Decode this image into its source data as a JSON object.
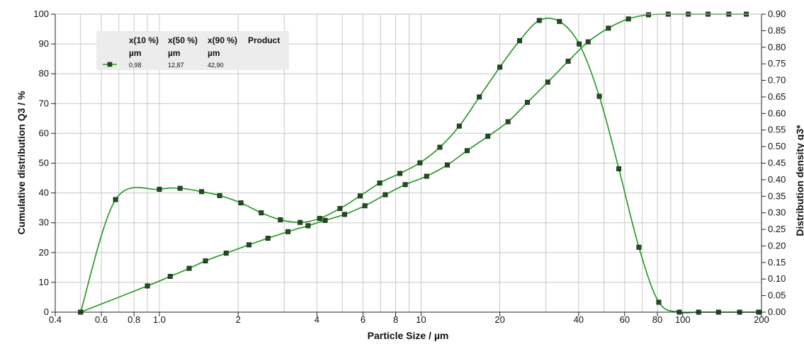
{
  "chart_data": {
    "type": "line",
    "xlabel": "Particle Size / µm",
    "ylabel": "Cumulative distribution Q3 / %",
    "y2label": "Distribution density q3*",
    "x_scale": "log",
    "xlim": [
      0.4,
      200
    ],
    "ylim": [
      0,
      100
    ],
    "y2lim": [
      0,
      0.9
    ],
    "grid": true,
    "x_ticks": [
      0.4,
      0.6,
      0.8,
      1.0,
      2,
      4,
      6,
      8,
      10,
      20,
      40,
      60,
      80,
      100,
      200
    ],
    "x_tick_labels": [
      "0.4",
      "0.6",
      "0.8",
      "1.0",
      "2",
      "4",
      "6",
      "8",
      "10",
      "20",
      "40",
      "60",
      "80",
      "100",
      "200"
    ],
    "y_ticks": [
      0,
      10,
      20,
      30,
      40,
      50,
      60,
      70,
      80,
      90,
      100
    ],
    "y_tick_labels": [
      "0",
      "10",
      "20",
      "30",
      "40",
      "50",
      "60",
      "70",
      "80",
      "90",
      "100"
    ],
    "y2_ticks": [
      0,
      0.05,
      0.1,
      0.15,
      0.2,
      0.25,
      0.3,
      0.35,
      0.4,
      0.45,
      0.5,
      0.55,
      0.6,
      0.65,
      0.7,
      0.75,
      0.8,
      0.85,
      0.9
    ],
    "y2_tick_labels": [
      "0.00",
      "0.05",
      "0.10",
      "0.15",
      "0.20",
      "0.25",
      "0.30",
      "0.35",
      "0.40",
      "0.45",
      "0.50",
      "0.55",
      "0.60",
      "0.65",
      "0.70",
      "0.75",
      "0.80",
      "0.85",
      "0.90"
    ],
    "series_color": "#2d9a2d",
    "marker_color": "#1f4d1f",
    "series": [
      {
        "axis": "left",
        "x": [
          0.5,
          0.9,
          1.1,
          1.3,
          1.5,
          1.8,
          2.2,
          2.6,
          3.1,
          3.7,
          4.3,
          5.1,
          6.1,
          7.3,
          8.7,
          10.5,
          12.6,
          15.0,
          18.0,
          21.5,
          25.5,
          30.5,
          36.5,
          43.5,
          52.0,
          62.0,
          74.0,
          88.0,
          105.0,
          125.0,
          150.0,
          175.0
        ],
        "y": [
          0,
          8.8,
          12,
          14.7,
          17.2,
          19.8,
          22.6,
          24.8,
          27,
          29,
          30.8,
          32.8,
          35.7,
          39.4,
          42.8,
          45.6,
          49.4,
          54.2,
          59,
          63.9,
          70.4,
          77.2,
          84.2,
          90.7,
          95.3,
          98.4,
          99.8,
          100,
          100,
          100,
          100,
          100
        ]
      },
      {
        "axis": "right",
        "x": [
          0.5,
          0.68,
          1.0,
          1.2,
          1.45,
          1.7,
          2.05,
          2.45,
          2.9,
          3.45,
          4.1,
          4.9,
          5.85,
          6.95,
          8.3,
          9.9,
          11.8,
          14.0,
          16.7,
          20.0,
          23.8,
          28.3,
          33.8,
          40.2,
          48.0,
          57.0,
          68.0,
          81.0,
          97.0,
          115.0,
          137.0,
          165.0,
          195.0
        ],
        "y": [
          0,
          0.34,
          0.371,
          0.374,
          0.364,
          0.352,
          0.33,
          0.3,
          0.279,
          0.271,
          0.283,
          0.313,
          0.351,
          0.39,
          0.419,
          0.451,
          0.498,
          0.562,
          0.65,
          0.74,
          0.82,
          0.881,
          0.878,
          0.81,
          0.652,
          0.433,
          0.196,
          0.03,
          0,
          0,
          0,
          0,
          0
        ]
      }
    ],
    "legend": {
      "headers": [
        "x(10 %)",
        "x(50 %)",
        "x(90 %)",
        "Product"
      ],
      "units": [
        "µm",
        "µm",
        "µm"
      ],
      "values": [
        "0,98",
        "12,87",
        "42,90"
      ]
    }
  }
}
